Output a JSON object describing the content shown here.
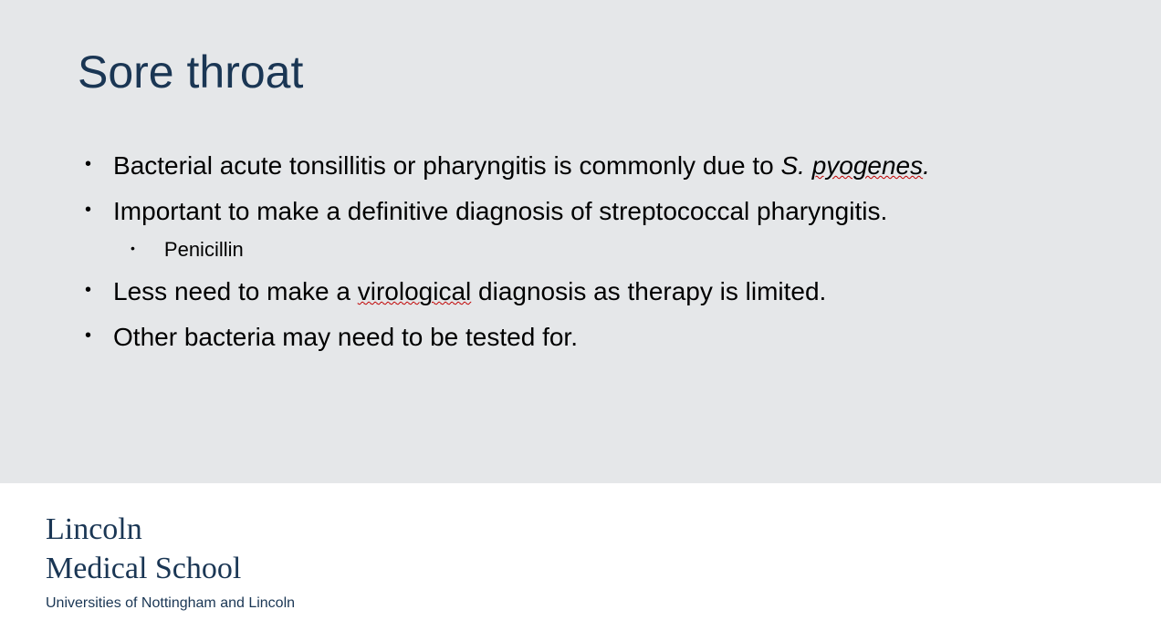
{
  "slide": {
    "title": "Sore throat",
    "title_color": "#1a3654",
    "title_fontsize": 50,
    "background_color": "#e5e7e9",
    "body_fontsize": 28,
    "body_color": "#000000",
    "bullets": [
      {
        "text_prefix": "Bacterial acute tonsillitis or pharyngitis is commonly due to ",
        "italic_part": "S. ",
        "italic_wavy_part": "pyogenes",
        "text_suffix": "."
      },
      {
        "text": "Important to make a definitive diagnosis of streptococcal pharyngitis."
      },
      {
        "sub_text": "Penicillin"
      },
      {
        "text_prefix": "Less need to make a ",
        "wavy_part": "virological",
        "text_suffix": " diagnosis as therapy is limited."
      },
      {
        "text": "Other bacteria may need to be tested for."
      }
    ],
    "spellcheck_color": "#c00000"
  },
  "footer": {
    "logo_line1": "Lincoln",
    "logo_line2": "Medical School",
    "subtitle": "Universities of Nottingham and Lincoln",
    "logo_color": "#1a3654",
    "logo_fontsize": 34,
    "subtitle_fontsize": 16
  }
}
